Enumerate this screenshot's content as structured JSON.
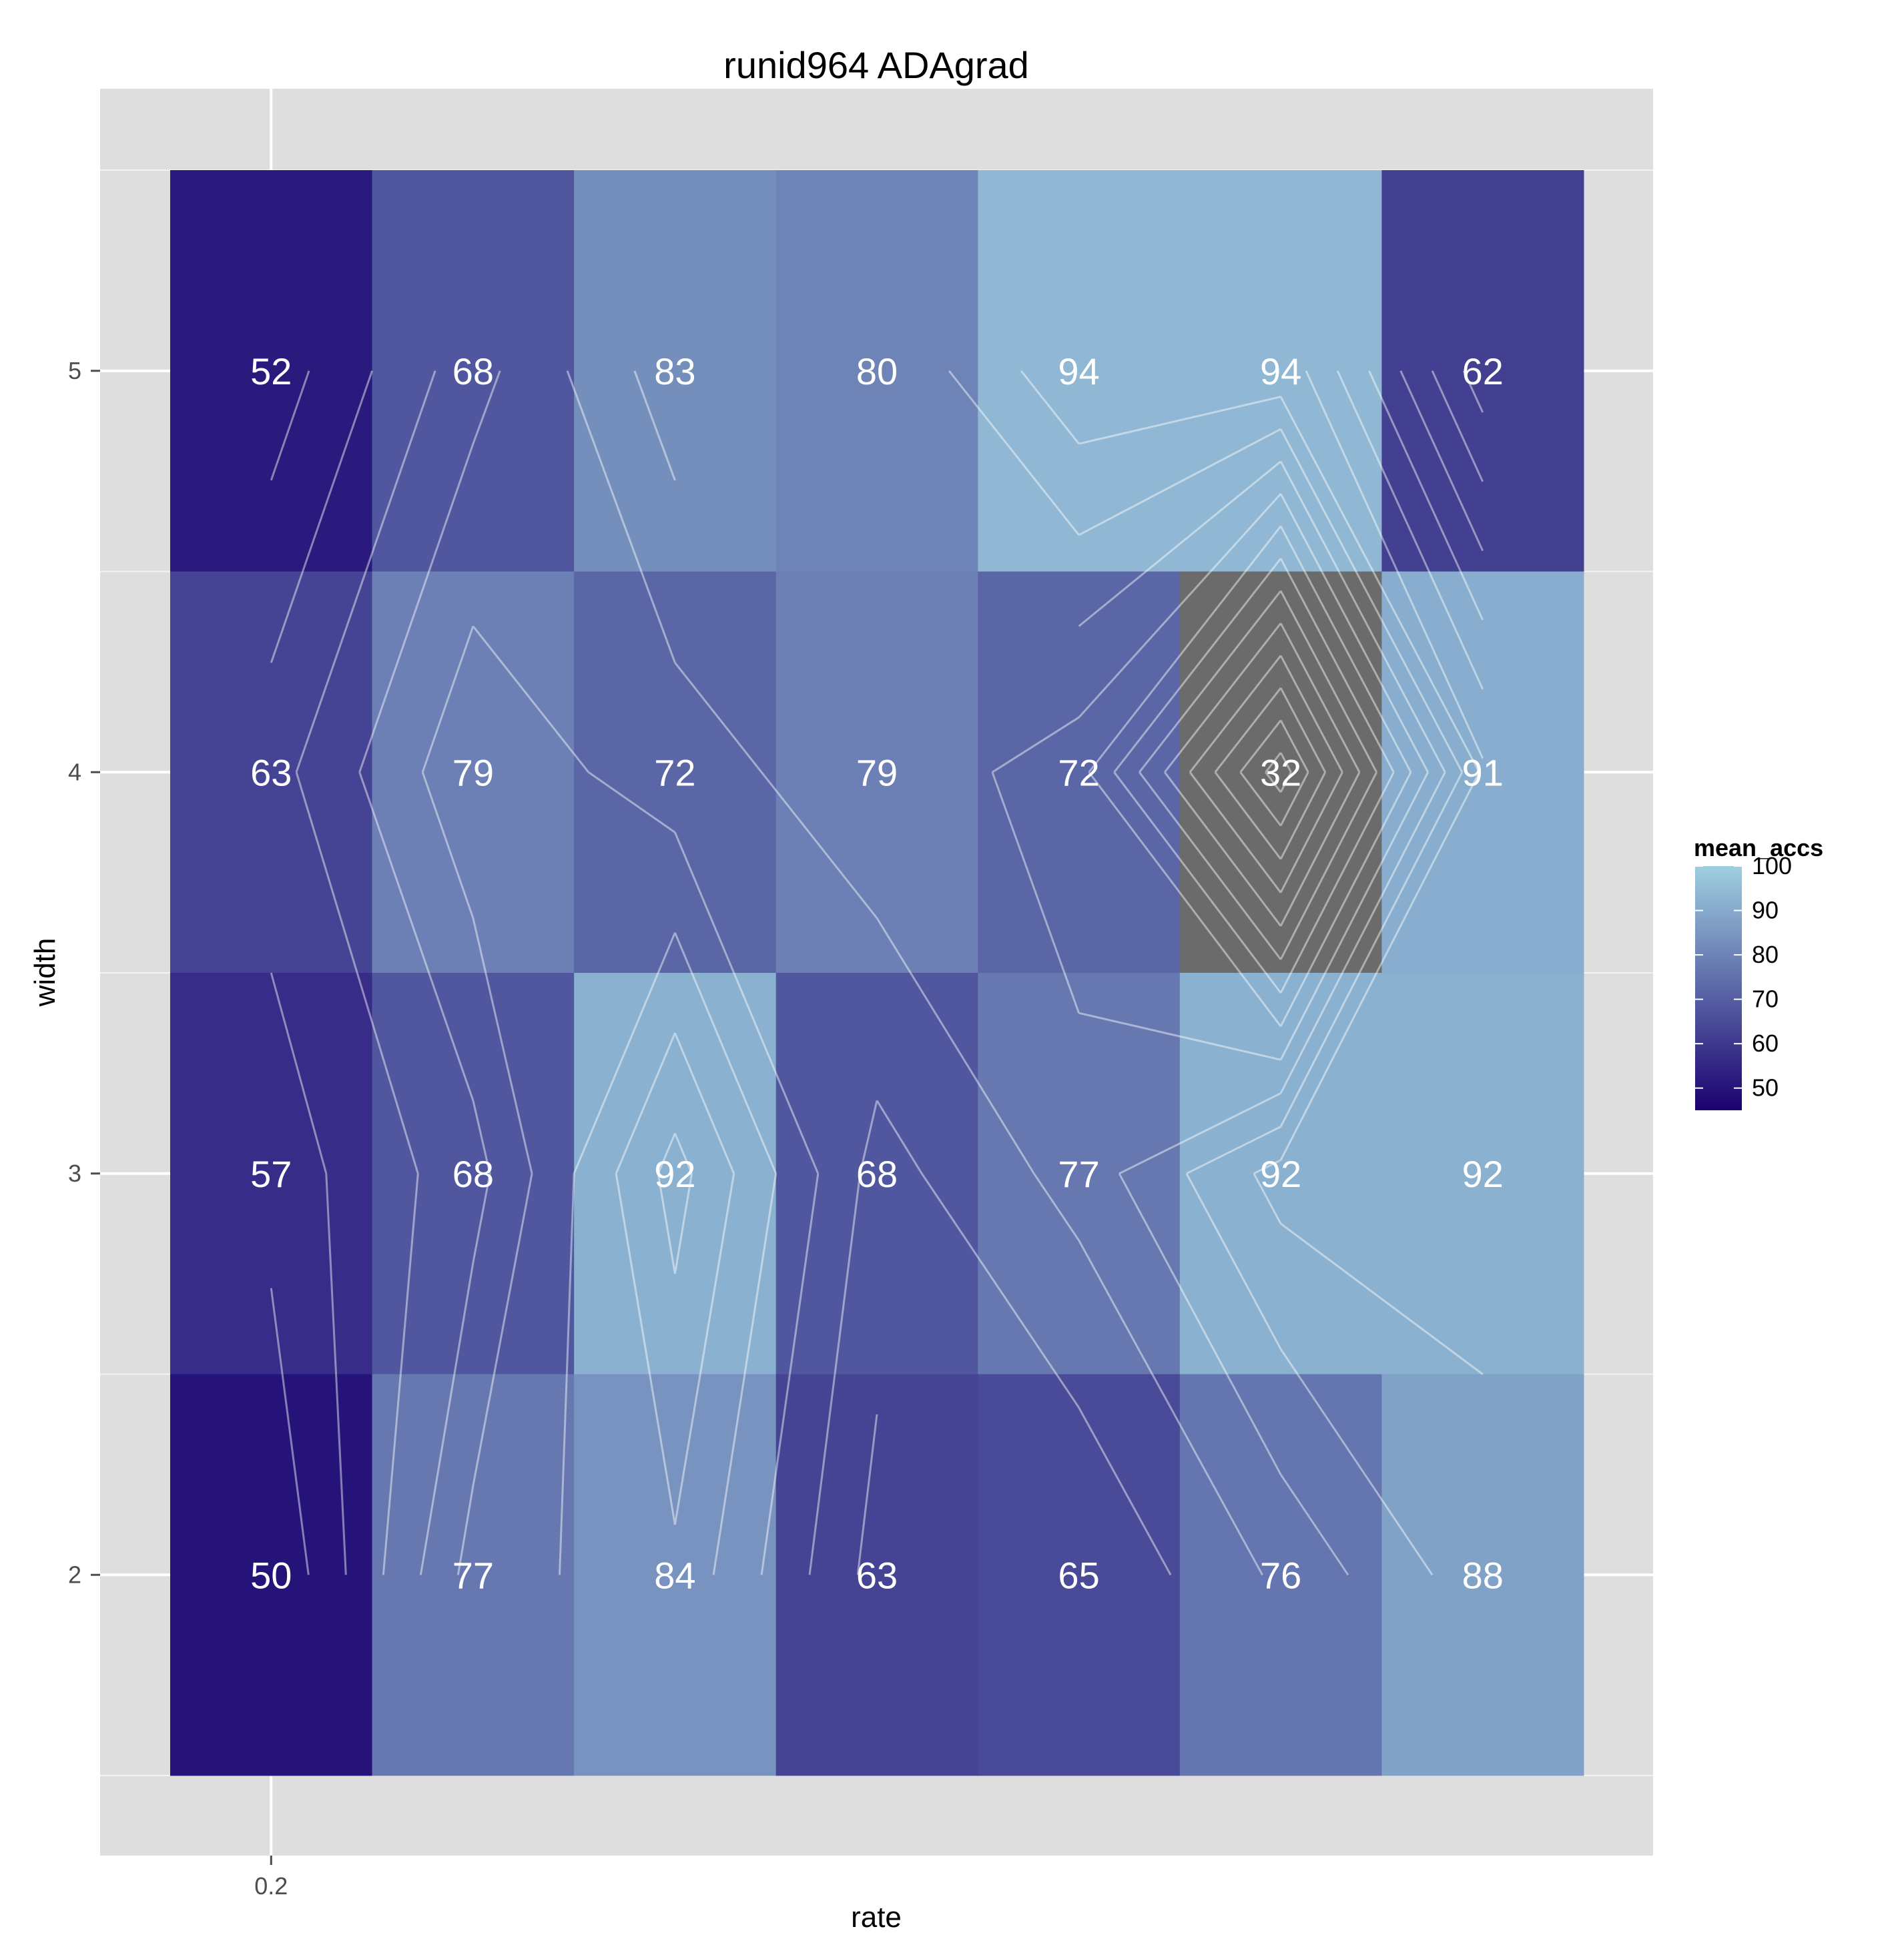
{
  "chart_data": {
    "type": "heatmap",
    "title": "runid964 ADAgrad",
    "xlabel": "rate",
    "ylabel": "width",
    "x_ticks": [
      "0.2"
    ],
    "y_ticks": [
      2,
      3,
      4,
      5
    ],
    "ylim": [
      1.5,
      5.5
    ],
    "columns": 7,
    "rows": [
      5,
      4,
      3,
      2
    ],
    "values": [
      [
        52,
        68,
        83,
        80,
        94,
        94,
        62
      ],
      [
        63,
        79,
        72,
        79,
        72,
        32,
        91
      ],
      [
        57,
        68,
        92,
        68,
        77,
        92,
        92
      ],
      [
        50,
        77,
        84,
        63,
        65,
        76,
        88
      ]
    ],
    "colorscale": {
      "low_color": "#1a006f",
      "high_color": "#9ecfe0",
      "min": 45,
      "max": 100,
      "out_of_range_color": "#6b6b6b"
    },
    "legend": {
      "title": "mean_accs",
      "labels": [
        "100",
        "90",
        "80",
        "70",
        "60",
        "50"
      ],
      "placement": "right"
    },
    "background_color": "#dedede",
    "grid": true,
    "contours": true
  }
}
